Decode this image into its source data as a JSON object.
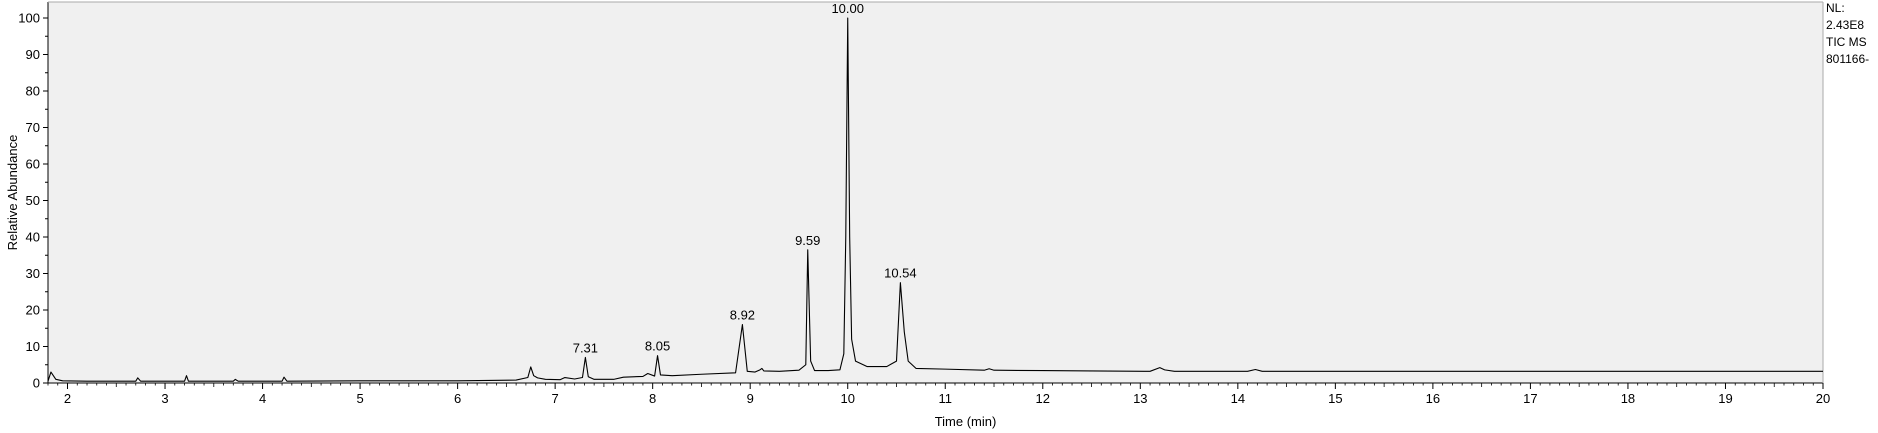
{
  "chart_data": {
    "type": "line",
    "title": "",
    "xlabel": "Time (min)",
    "ylabel": "Relative Abundance",
    "xlim": [
      1.8,
      20
    ],
    "ylim": [
      0,
      100
    ],
    "x_ticks": [
      2,
      3,
      4,
      5,
      6,
      7,
      8,
      9,
      10,
      11,
      12,
      13,
      14,
      15,
      16,
      17,
      18,
      19,
      20
    ],
    "y_ticks": [
      0,
      10,
      20,
      30,
      40,
      50,
      60,
      70,
      80,
      90,
      100
    ],
    "grid": false,
    "series": [
      {
        "x": [
          1.8,
          1.83,
          1.85,
          1.88,
          1.95,
          2.2,
          2.7,
          2.72,
          2.75,
          3.1,
          3.2,
          3.22,
          3.24,
          3.6,
          3.7,
          3.72,
          3.75,
          4.15,
          4.2,
          4.22,
          4.25,
          5.0,
          6.0,
          6.6,
          6.72,
          6.75,
          6.78,
          6.82,
          6.9,
          7.05,
          7.1,
          7.2,
          7.28,
          7.31,
          7.34,
          7.4,
          7.6,
          7.7,
          7.9,
          7.95,
          8.02,
          8.05,
          8.08,
          8.2,
          8.5,
          8.85,
          8.92,
          8.97,
          9.05,
          9.1,
          9.12,
          9.14,
          9.3,
          9.5,
          9.57,
          9.59,
          9.62,
          9.66,
          9.8,
          9.92,
          9.96,
          9.98,
          10.0,
          10.02,
          10.04,
          10.08,
          10.2,
          10.4,
          10.5,
          10.54,
          10.58,
          10.62,
          10.7,
          11.0,
          11.4,
          11.45,
          11.5,
          12.0,
          12.5,
          13.1,
          13.2,
          13.25,
          13.35,
          14.1,
          14.18,
          14.25,
          15.0,
          16.0,
          17.0,
          18.0,
          19.0,
          20.0
        ],
        "y": [
          0.5,
          3.0,
          2.2,
          1.0,
          0.6,
          0.5,
          0.5,
          1.4,
          0.5,
          0.5,
          0.5,
          2.0,
          0.5,
          0.5,
          0.5,
          1.0,
          0.5,
          0.5,
          0.5,
          1.6,
          0.5,
          0.6,
          0.6,
          0.8,
          1.5,
          4.4,
          2.0,
          1.4,
          1.0,
          0.9,
          1.5,
          1.1,
          1.5,
          7.0,
          1.7,
          1.0,
          1.0,
          1.6,
          1.8,
          2.6,
          1.9,
          7.5,
          2.2,
          2.0,
          2.4,
          2.8,
          16.0,
          3.2,
          3.0,
          3.6,
          4.0,
          3.3,
          3.2,
          3.5,
          5.0,
          36.5,
          6.0,
          3.4,
          3.4,
          3.6,
          8.0,
          40.0,
          100.0,
          40.0,
          12.0,
          6.0,
          4.5,
          4.5,
          6.0,
          27.5,
          14.0,
          6.0,
          4.0,
          3.8,
          3.5,
          3.9,
          3.5,
          3.4,
          3.3,
          3.2,
          4.2,
          3.6,
          3.2,
          3.2,
          3.7,
          3.2,
          3.2,
          3.2,
          3.2,
          3.2,
          3.2,
          3.2
        ]
      }
    ],
    "peak_labels": [
      {
        "x": 7.31,
        "y": 7.0,
        "text": "7.31"
      },
      {
        "x": 8.05,
        "y": 7.5,
        "text": "8.05"
      },
      {
        "x": 8.92,
        "y": 16.0,
        "text": "8.92"
      },
      {
        "x": 9.59,
        "y": 36.5,
        "text": "9.59"
      },
      {
        "x": 10.0,
        "y": 100.0,
        "text": "10.00"
      },
      {
        "x": 10.54,
        "y": 27.5,
        "text": "10.54"
      }
    ],
    "info_lines": [
      "NL:",
      "2.43E8",
      "TIC  MS",
      "801166-"
    ],
    "line_color": "#000000",
    "background_color": "#ffffff"
  }
}
